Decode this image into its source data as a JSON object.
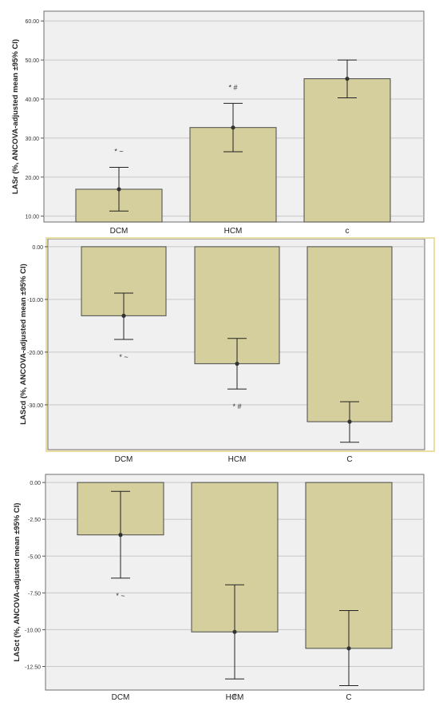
{
  "chart_data": [
    {
      "type": "bar",
      "categories": [
        "DCM",
        "HCM",
        "c"
      ],
      "values": [
        16.9,
        32.7,
        45.2
      ],
      "ci_lower": [
        11.3,
        26.5,
        40.3
      ],
      "ci_upper": [
        22.5,
        38.9,
        50.0
      ],
      "annotations": [
        "* ~",
        "* #",
        ""
      ],
      "ylabel": "LASr (%, ANCOVA-adjusted mean ±95% CI)",
      "ylim": [
        8.5,
        62.5
      ],
      "yticks": [
        "10.00",
        "20.00",
        "30.00",
        "40.00",
        "50.00",
        "60.00"
      ],
      "ytick_values": [
        10,
        20,
        30,
        40,
        50,
        60
      ],
      "grid": true
    },
    {
      "type": "bar",
      "categories": [
        "DCM",
        "HCM",
        "C"
      ],
      "values": [
        -13.1,
        -22.2,
        -33.2
      ],
      "ci_lower": [
        -17.6,
        -27.0,
        -37.1
      ],
      "ci_upper": [
        -8.8,
        -17.4,
        -29.4
      ],
      "annotations": [
        "* ~",
        "* #",
        ""
      ],
      "ylabel": "LAScd (%, ANCOVA-adjusted mean ±95% CI)",
      "ylim": [
        -38.5,
        1.5
      ],
      "yticks": [
        "0.00",
        "-10.00",
        "-20.00",
        "-30.00"
      ],
      "ytick_values": [
        0,
        -10,
        -20,
        -30
      ],
      "grid": true
    },
    {
      "type": "bar",
      "categories": [
        "DCM",
        "HCM",
        "C"
      ],
      "values": [
        -3.56,
        -10.15,
        -11.27
      ],
      "ci_lower": [
        -6.5,
        -13.35,
        -13.8
      ],
      "ci_upper": [
        -0.6,
        -6.95,
        -8.7
      ],
      "annotations": [
        "* ~",
        "#",
        ""
      ],
      "ylabel": "LASct (%, ANCOVA-adjusted mean ±95% CI)",
      "ylim": [
        -14.1,
        0.55
      ],
      "yticks": [
        "0.00",
        "-2.50",
        "-5.00",
        "-7.50",
        "-10.00",
        "-12.50"
      ],
      "ytick_values": [
        0,
        -2.5,
        -5,
        -7.5,
        -10,
        -12.5
      ],
      "grid": true
    }
  ],
  "colors": {
    "bar_fill": "#d4cf9c",
    "bar_stroke": "#4a4a4a",
    "plot_bg": "#f0f0f0",
    "grid": "#c8c8c8",
    "panel2_border": "#e9dfa0"
  }
}
